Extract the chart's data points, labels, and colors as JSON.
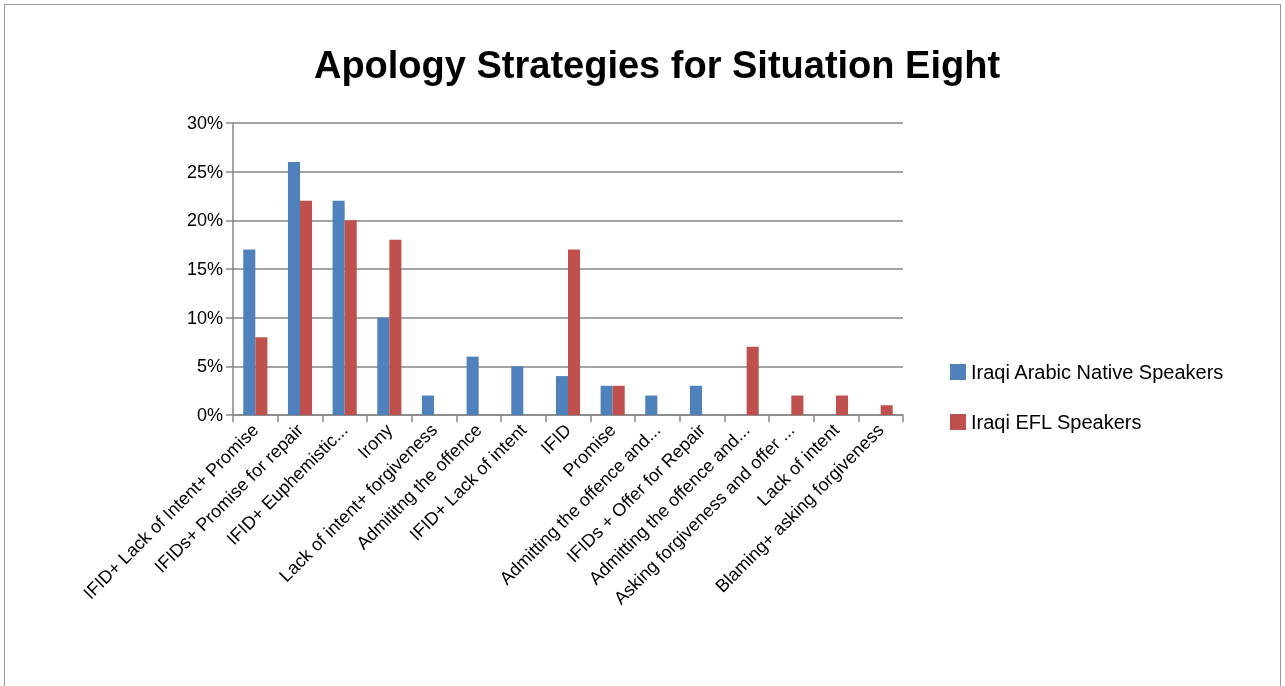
{
  "chart_data": {
    "type": "bar",
    "title": "Apology Strategies for Situation Eight",
    "categories": [
      "IFID+ Lack of Intent+ Promise",
      "IFIDs+ Promise for repair",
      "IFID+ Euphemistic...",
      "Irony",
      "Lack of intent+ forgiveness",
      "Admititng the offence",
      "IFID+ Lack of intent",
      "IFID",
      "Promise",
      "Admitting the offence and...",
      "IFIDs + Offer for Repair",
      "Admitting the offence and...",
      "Asking forgiveness and offer ...",
      "Lack of intent",
      "Blaming+ asking forgiveness"
    ],
    "series": [
      {
        "name": "Iraqi Arabic Native Speakers",
        "color": "#4f81bd",
        "values": [
          17,
          26,
          22,
          10,
          2,
          6,
          5,
          4,
          3,
          2,
          3,
          null,
          null,
          null,
          null
        ]
      },
      {
        "name": "Iraqi EFL Speakers",
        "color": "#c0504d",
        "values": [
          8,
          22,
          20,
          18,
          null,
          null,
          null,
          17,
          3,
          null,
          null,
          7,
          2,
          2,
          1
        ]
      }
    ],
    "ylim": [
      0,
      30
    ],
    "yticks": [
      {
        "value": 0,
        "label": "0%"
      },
      {
        "value": 5,
        "label": "5%"
      },
      {
        "value": 10,
        "label": "10%"
      },
      {
        "value": 15,
        "label": "15%"
      },
      {
        "value": 20,
        "label": "20%"
      },
      {
        "value": 25,
        "label": "25%"
      },
      {
        "value": 30,
        "label": "30%"
      }
    ],
    "grid": "y",
    "legend": "right"
  }
}
